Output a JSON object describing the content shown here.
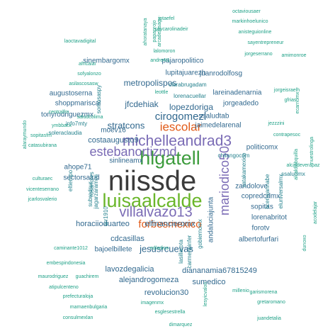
{
  "chart_data": {
    "type": "wordcloud",
    "title": "",
    "color_scale": [
      "#1fa187",
      "#26828e",
      "#31688e",
      "#3e4a89",
      "#482878",
      "#6ece58",
      "#f07f20",
      "#e15a18",
      "#7a6bb5",
      "#44a63a"
    ],
    "words": [
      {
        "text": "niissde",
        "weight": 30,
        "color": "#3b3b3b"
      },
      {
        "text": "luisaalcalde",
        "weight": 20,
        "color": "#6ab62a"
      },
      {
        "text": "hlgatell",
        "weight": 20,
        "color": "#3d9c3d"
      },
      {
        "text": "michelleandrad3",
        "weight": 15,
        "color": "#7a6bb5"
      },
      {
        "text": "villalvazo13",
        "weight": 14,
        "color": "#7a6bb5"
      },
      {
        "text": "mariodico50",
        "weight": 13,
        "color": "#7a6bb5"
      },
      {
        "text": "estebanortizmd",
        "weight": 13,
        "color": "#7a6bb5"
      },
      {
        "text": "iescolar",
        "weight": 12,
        "color": "#e15a18"
      },
      {
        "text": "forbesmexico",
        "weight": 10,
        "color": "#e15a18"
      },
      {
        "text": "cirogomezl",
        "weight": 10,
        "color": "#31688e"
      },
      {
        "text": "jesusrcuevas",
        "weight": 9,
        "color": "#31688e"
      },
      {
        "text": "stratcons",
        "weight": 9,
        "color": "#31688e"
      },
      {
        "text": "metropolispos",
        "weight": 8,
        "color": "#31688e"
      },
      {
        "text": "lopezdoriga",
        "weight": 8,
        "color": "#31688e"
      },
      {
        "text": "jfcdehiak",
        "weight": 8,
        "color": "#31688e"
      },
      {
        "text": "costaaugusto9",
        "weight": 7,
        "color": "#31688e"
      },
      {
        "text": "horaciioduarteo",
        "weight": 7,
        "color": "#31688e"
      },
      {
        "text": "elfinancieromx",
        "weight": 7,
        "color": "#31688e"
      },
      {
        "text": "cdcasillas",
        "weight": 7,
        "color": "#31688e"
      },
      {
        "text": "lavozdegalicia",
        "weight": 7,
        "color": "#31688e"
      },
      {
        "text": "alejandrogomeza",
        "weight": 7,
        "color": "#31688e"
      },
      {
        "text": "revolucion30",
        "weight": 7,
        "color": "#31688e"
      },
      {
        "text": "sumedico",
        "weight": 7,
        "color": "#31688e"
      },
      {
        "text": "diananamia67815249",
        "weight": 7,
        "color": "#31688e"
      },
      {
        "text": "sinembargomx",
        "weight": 6,
        "color": "#31688e"
      },
      {
        "text": "pajaropolitico",
        "weight": 6,
        "color": "#31688e"
      },
      {
        "text": "lupitajuarezh",
        "weight": 6,
        "color": "#31688e"
      },
      {
        "text": "juanrodolfosg",
        "weight": 6,
        "color": "#31688e"
      },
      {
        "text": "augustoserna",
        "weight": 6,
        "color": "#31688e"
      },
      {
        "text": "shoppmariscal",
        "weight": 6,
        "color": "#31688e"
      },
      {
        "text": "tonyrodriguezmx",
        "weight": 6,
        "color": "#31688e"
      },
      {
        "text": "ssaludtab",
        "weight": 6,
        "color": "#31688e"
      },
      {
        "text": "jaimedelarenal",
        "weight": 6,
        "color": "#31688e"
      },
      {
        "text": "jorgeadedo",
        "weight": 6,
        "color": "#31688e"
      },
      {
        "text": "lareinadenarnia",
        "weight": 6,
        "color": "#31688e"
      },
      {
        "text": "ahope71",
        "weight": 6,
        "color": "#31688e"
      },
      {
        "text": "sectorsalud",
        "weight": 6,
        "color": "#31688e"
      },
      {
        "text": "moev16",
        "weight": 6,
        "color": "#31688e"
      },
      {
        "text": "sinlineamx",
        "weight": 6,
        "color": "#31688e"
      },
      {
        "text": "andaluciajunta",
        "weight": 6,
        "color": "#31688e"
      },
      {
        "text": "zandolove",
        "weight": 6,
        "color": "#31688e"
      },
      {
        "text": "copredcdmx",
        "weight": 6,
        "color": "#31688e"
      },
      {
        "text": "sopitas",
        "weight": 6,
        "color": "#31688e"
      },
      {
        "text": "lorenabritot",
        "weight": 6,
        "color": "#31688e"
      },
      {
        "text": "forotv",
        "weight": 6,
        "color": "#31688e"
      },
      {
        "text": "albertofurfari",
        "weight": 6,
        "color": "#31688e"
      },
      {
        "text": "bajoelbillete",
        "weight": 6,
        "color": "#31688e"
      },
      {
        "text": "politicomx",
        "weight": 6,
        "color": "#31688e"
      },
      {
        "text": "clarabrugadam",
        "weight": 5,
        "color": "#26828e"
      },
      {
        "text": "lorenacuellar",
        "weight": 5,
        "color": "#26828e"
      },
      {
        "text": "somosaspy",
        "weight": 5,
        "color": "#26828e"
      },
      {
        "text": "info7mty",
        "weight": 5,
        "color": "#26828e"
      },
      {
        "text": "soleraclaudia",
        "weight": 5,
        "color": "#26828e"
      },
      {
        "text": "rosanotes",
        "weight": 5,
        "color": "#26828e"
      },
      {
        "text": "eltiempo",
        "weight": 5,
        "color": "#26828e"
      },
      {
        "text": "subredsur",
        "weight": 5,
        "color": "#26828e"
      },
      {
        "text": "jagarzaramos",
        "weight": 5,
        "color": "#26828e"
      },
      {
        "text": "arr1910",
        "weight": 5,
        "color": "#26828e"
      },
      {
        "text": "lasillarota",
        "weight": 5,
        "color": "#26828e"
      },
      {
        "text": "carmenpinfer",
        "weight": 5,
        "color": "#26828e"
      },
      {
        "text": "gobiernomx",
        "weight": 5,
        "color": "#26828e"
      },
      {
        "text": "chilangocom",
        "weight": 5,
        "color": "#26828e"
      },
      {
        "text": "xatakamexico",
        "weight": 5,
        "color": "#26828e"
      },
      {
        "text": "licenwannabe",
        "weight": 5,
        "color": "#26828e"
      },
      {
        "text": "eluniversalmx",
        "weight": 5,
        "color": "#26828e"
      },
      {
        "text": "ssaludmx",
        "weight": 5,
        "color": "#26828e"
      },
      {
        "text": "alcaldiabquilla",
        "weight": 4,
        "color": "#1fa187"
      },
      {
        "text": "octaviousaer",
        "weight": 4,
        "color": "#1fa187"
      },
      {
        "text": "markinhoelunico",
        "weight": 4,
        "color": "#1fa187"
      },
      {
        "text": "anisteguionline",
        "weight": 4,
        "color": "#1fa187"
      },
      {
        "text": "sayentrepreneur",
        "weight": 4,
        "color": "#1fa187"
      },
      {
        "text": "jotaefel",
        "weight": 4,
        "color": "#1fa187"
      },
      {
        "text": "soycarolinadeir",
        "weight": 4,
        "color": "#1fa187"
      },
      {
        "text": "laoctavadigital",
        "weight": 4,
        "color": "#1fa187"
      },
      {
        "text": "jorgeserrano",
        "weight": 4,
        "color": "#1fa187"
      },
      {
        "text": "lalomoron",
        "weight": 4,
        "color": "#1fa187"
      },
      {
        "text": "africalai",
        "weight": 4,
        "color": "#1fa187"
      },
      {
        "text": "sofyalonzo",
        "weight": 4,
        "color": "#1fa187"
      },
      {
        "text": "asilascosasw",
        "weight": 4,
        "color": "#1fa187"
      },
      {
        "text": "andre4t1",
        "weight": 4,
        "color": "#1fa187"
      },
      {
        "text": "leottle",
        "weight": 4,
        "color": "#1fa187"
      },
      {
        "text": "jorgeisraelh",
        "weight": 4,
        "color": "#1fa187"
      },
      {
        "text": "gfrias",
        "weight": 4,
        "color": "#1fa187"
      },
      {
        "text": "ecarnomx",
        "weight": 4,
        "color": "#1fa187"
      },
      {
        "text": "centralfm",
        "weight": 4,
        "color": "#1fa187"
      },
      {
        "text": "saludcolima",
        "weight": 4,
        "color": "#1fa187"
      },
      {
        "text": "ymbback",
        "weight": 4,
        "color": "#1fa187"
      },
      {
        "text": "jezzzini",
        "weight": 4,
        "color": "#1fa187"
      },
      {
        "text": "contrapesoc",
        "weight": 4,
        "color": "#1fa187"
      },
      {
        "text": "sopitasfm",
        "weight": 4,
        "color": "#1fa187"
      },
      {
        "text": "catasubirana",
        "weight": 4,
        "color": "#1fa187"
      },
      {
        "text": "alaraymundo",
        "weight": 4,
        "color": "#1fa187"
      },
      {
        "text": "culturaec",
        "weight": 4,
        "color": "#1fa187"
      },
      {
        "text": "vicenteserrano",
        "weight": 4,
        "color": "#1fa187"
      },
      {
        "text": "jcarlosvalerio",
        "weight": 4,
        "color": "#1fa187"
      },
      {
        "text": "caminante1012",
        "weight": 4,
        "color": "#1fa187"
      },
      {
        "text": "edladino",
        "weight": 4,
        "color": "#1fa187"
      },
      {
        "text": "embespindonesia",
        "weight": 4,
        "color": "#1fa187"
      },
      {
        "text": "maurodriguez",
        "weight": 4,
        "color": "#1fa187"
      },
      {
        "text": "guachirem",
        "weight": 4,
        "color": "#1fa187"
      },
      {
        "text": "atipulcenteno",
        "weight": 4,
        "color": "#1fa187"
      },
      {
        "text": "prefecturaloja",
        "weight": 4,
        "color": "#1fa187"
      },
      {
        "text": "marnaenbulgaria",
        "weight": 4,
        "color": "#1fa187"
      },
      {
        "text": "imagenmx",
        "weight": 4,
        "color": "#1fa187"
      },
      {
        "text": "consulmexlan",
        "weight": 4,
        "color": "#1fa187"
      },
      {
        "text": "esglesestrella",
        "weight": 4,
        "color": "#1fa187"
      },
      {
        "text": "garismorena",
        "weight": 4,
        "color": "#1fa187"
      },
      {
        "text": "gretaromano",
        "weight": 4,
        "color": "#1fa187"
      },
      {
        "text": "juandetalia",
        "weight": 4,
        "color": "#1fa187"
      },
      {
        "text": "millenio",
        "weight": 4,
        "color": "#1fa187"
      },
      {
        "text": "dunoxo",
        "weight": 4,
        "color": "#1fa187"
      },
      {
        "text": "alcaldeverapaz",
        "weight": 4,
        "color": "#1fa187"
      },
      {
        "text": "acodelajar",
        "weight": 4,
        "color": "#1fa187"
      },
      {
        "text": "nuestrolinga",
        "weight": 4,
        "color": "#1fa187"
      },
      {
        "text": "amimonroe",
        "weight": 4,
        "color": "#1fa187"
      },
      {
        "text": "ahoratanaya",
        "weight": 4,
        "color": "#1fa187"
      },
      {
        "text": "arcadelasagu",
        "weight": 4,
        "color": "#1fa187"
      },
      {
        "text": "papaprojo",
        "weight": 4,
        "color": "#1fa187"
      },
      {
        "text": "lesyicvalon",
        "weight": 4,
        "color": "#1fa187"
      },
      {
        "text": "dimarquez",
        "weight": 4,
        "color": "#1fa187"
      }
    ]
  }
}
